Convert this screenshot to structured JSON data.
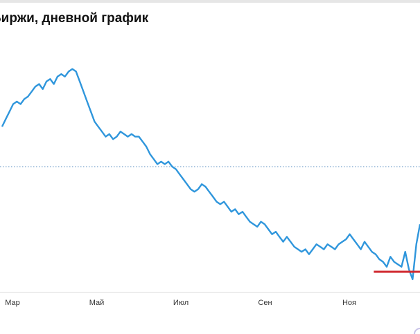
{
  "header": {
    "title": "Биржи, дневной график"
  },
  "chart_data": {
    "type": "line",
    "title": "Биржи, дневной график",
    "xlabel": "",
    "ylabel": "",
    "x_ticks": [
      "Мар",
      "Май",
      "Июл",
      "Сен",
      "Ноя"
    ],
    "legend": "none",
    "grid": false,
    "series": [
      {
        "color": "#2f96dc",
        "values": [
          66,
          69,
          72,
          75,
          76,
          75,
          77,
          78,
          80,
          82,
          83,
          81,
          84,
          85,
          83,
          86,
          87,
          86,
          88,
          89,
          88,
          84,
          80,
          76,
          72,
          68,
          66,
          64,
          62,
          63,
          61,
          62,
          64,
          63,
          62,
          63,
          62,
          62,
          60,
          58,
          55,
          53,
          51,
          52,
          51,
          52,
          50,
          49,
          47,
          45,
          43,
          41,
          40,
          41,
          43,
          42,
          40,
          38,
          36,
          35,
          36,
          34,
          32,
          33,
          31,
          32,
          30,
          28,
          27,
          26,
          28,
          27,
          25,
          23,
          24,
          22,
          20,
          22,
          20,
          18,
          17,
          16,
          17,
          15,
          17,
          19,
          18,
          17,
          19,
          18,
          17,
          19,
          20,
          21,
          23,
          21,
          19,
          17,
          20,
          18,
          16,
          15,
          13,
          12,
          10,
          14,
          12,
          11,
          10,
          16,
          9,
          5,
          19,
          27
        ]
      }
    ],
    "reference_lines": [
      {
        "style": "dotted",
        "color": "#5a8fc0",
        "y": 50
      },
      {
        "style": "solid",
        "color": "#d0282e",
        "y": 8,
        "x_start_fraction": 0.89
      }
    ],
    "ylim": [
      0,
      100
    ]
  },
  "colors": {
    "line": "#2f96dc",
    "reference_dotted": "#5a8fc0",
    "reference_red": "#d0282e",
    "axis": "#dddddd",
    "tick_label": "#333333"
  }
}
